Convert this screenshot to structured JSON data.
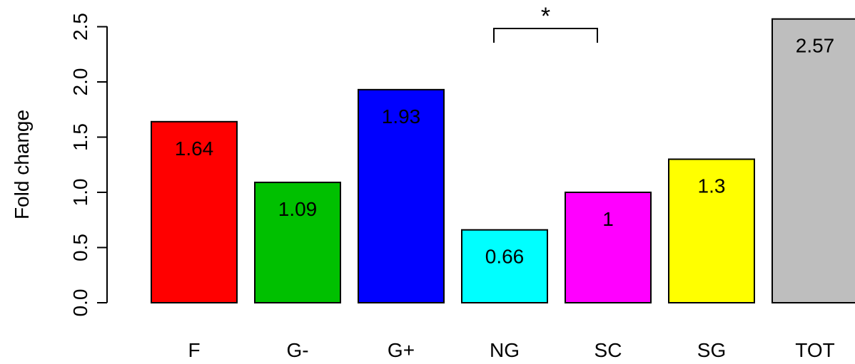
{
  "chart_data": {
    "type": "bar",
    "title": "",
    "xlabel": "",
    "ylabel": "Fold change",
    "ylim": [
      0,
      2.5
    ],
    "yticks": [
      "0.0",
      "0.5",
      "1.0",
      "1.5",
      "2.0",
      "2.5"
    ],
    "categories": [
      "F",
      "G-",
      "G+",
      "NG",
      "SC",
      "SG",
      "TOT"
    ],
    "values": [
      1.64,
      1.09,
      1.93,
      0.66,
      1.0,
      1.3,
      2.57
    ],
    "value_labels": [
      "1.64",
      "1.09",
      "1.93",
      "0.66",
      "1",
      "1.3",
      "2.57"
    ],
    "colors": [
      "#ff0000",
      "#00c000",
      "#0000ff",
      "#00ffff",
      "#ff00ff",
      "#ffff00",
      "#bebebe"
    ],
    "significance": {
      "from": "NG",
      "to": "SC",
      "label": "*"
    },
    "grid": false,
    "legend": "none"
  }
}
